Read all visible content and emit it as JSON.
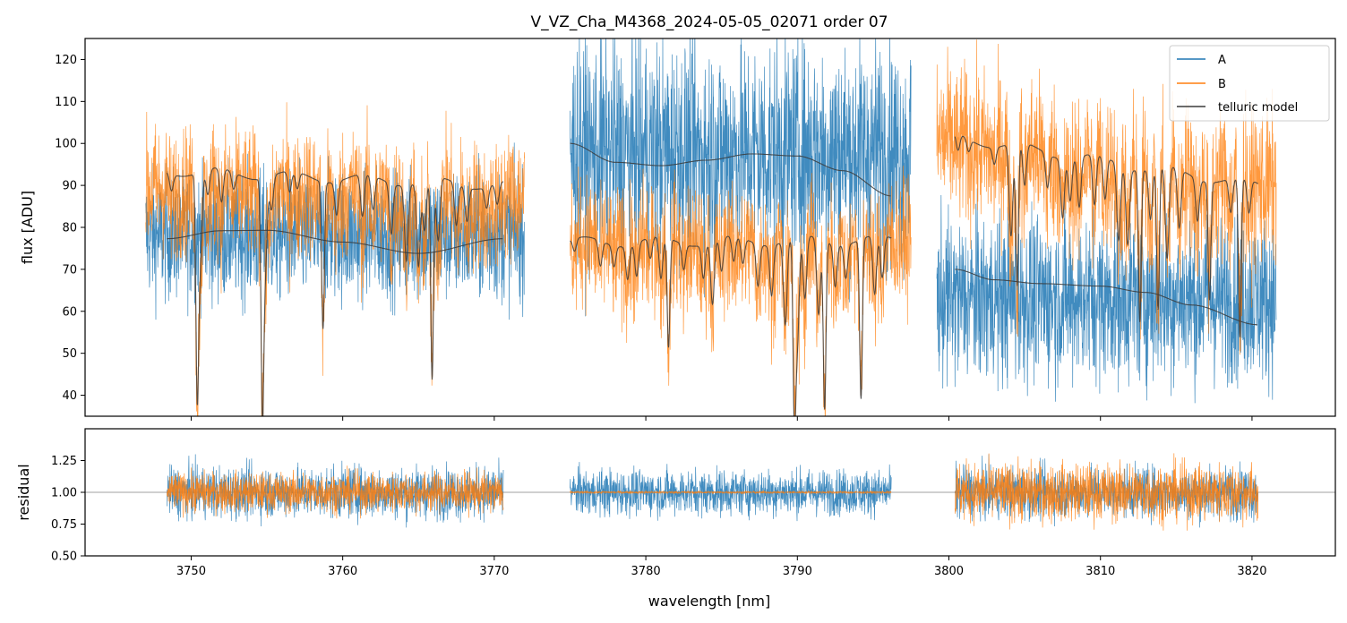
{
  "chart_data": [
    {
      "type": "line",
      "panel": "top",
      "title": "V_VZ_Cha_M4368_2024-05-05_02071  order 07",
      "xlabel": "",
      "ylabel": "flux [ADU]",
      "xlim": [
        3743.0,
        3825.5
      ],
      "ylim": [
        35,
        125
      ],
      "yticks": [
        40,
        50,
        60,
        70,
        80,
        90,
        100,
        110,
        120
      ],
      "xticks": [
        3750,
        3760,
        3770,
        3780,
        3790,
        3800,
        3810,
        3820
      ],
      "legend": {
        "position": "top-right",
        "entries": [
          "A",
          "B",
          "telluric model"
        ]
      },
      "colors": {
        "A": "#1f77b4",
        "B": "#ff7f0e",
        "model": "#3a3a3a",
        "axes": "#000000"
      },
      "segments": [
        {
          "x_start": 3747.0,
          "x_end": 3772.0,
          "A_mean": 78,
          "A_noise": 14,
          "B_mean": 88,
          "B_noise": 14,
          "modelA": {
            "x": [
              3748.4,
              3752,
              3755,
              3760,
              3765,
              3770.6
            ],
            "y": [
              77.3,
              79.2,
              79.3,
              76.5,
              73.8,
              77.3
            ]
          },
          "modelB": {
            "x": [
              3748.4,
              3770.6
            ],
            "base_y": [
              93.5,
              90.0
            ],
            "dips": [
              [
                3748.7,
                4
              ],
              [
                3750.4,
                50
              ],
              [
                3750.6,
                20
              ],
              [
                3751.1,
                6
              ],
              [
                3752.0,
                8
              ],
              [
                3752.8,
                4
              ],
              [
                3754.7,
                53
              ],
              [
                3754.9,
                20
              ],
              [
                3755.3,
                8
              ],
              [
                3756.5,
                5
              ],
              [
                3757.0,
                4
              ],
              [
                3758.7,
                35
              ],
              [
                3759.6,
                8
              ],
              [
                3761.3,
                10
              ],
              [
                3762.0,
                8
              ],
              [
                3763.2,
                12
              ],
              [
                3764.2,
                18
              ],
              [
                3765.0,
                20
              ],
              [
                3765.4,
                12
              ],
              [
                3765.9,
                48
              ],
              [
                3766.3,
                15
              ],
              [
                3767.5,
                10
              ],
              [
                3768.2,
                8
              ],
              [
                3769.5,
                5
              ],
              [
                3770.2,
                5
              ]
            ]
          }
        },
        {
          "x_start": 3775.0,
          "x_end": 3797.5,
          "A_mean": 98,
          "A_noise": 24,
          "B_mean": 76,
          "B_noise": 14,
          "modelA": {
            "x": [
              3775.0,
              3778,
              3781,
              3784,
              3787,
              3790,
              3793,
              3796.2
            ],
            "y": [
              100.0,
              95.5,
              94.7,
              96.0,
              97.5,
              97.0,
              93.5,
              87.5
            ]
          },
          "modelB": {
            "x": [
              3775.0,
              3796.2
            ],
            "base_y": [
              76.5,
              77.0
            ],
            "dips": [
              [
                3775.3,
                3
              ],
              [
                3777.0,
                6
              ],
              [
                3777.9,
                5
              ],
              [
                3778.8,
                8
              ],
              [
                3779.4,
                8
              ],
              [
                3780.3,
                5
              ],
              [
                3781.0,
                10
              ],
              [
                3781.5,
                26
              ],
              [
                3782.5,
                6
              ],
              [
                3783.8,
                8
              ],
              [
                3784.4,
                15
              ],
              [
                3785.0,
                8
              ],
              [
                3785.8,
                6
              ],
              [
                3786.4,
                6
              ],
              [
                3787.4,
                10
              ],
              [
                3788.3,
                12
              ],
              [
                3789.2,
                20
              ],
              [
                3789.8,
                40
              ],
              [
                3790.0,
                25
              ],
              [
                3790.5,
                15
              ],
              [
                3791.4,
                18
              ],
              [
                3791.8,
                40
              ],
              [
                3792.5,
                10
              ],
              [
                3793.2,
                8
              ],
              [
                3794.2,
                38
              ],
              [
                3795.1,
                14
              ],
              [
                3795.6,
                10
              ]
            ]
          }
        },
        {
          "x_start": 3799.2,
          "x_end": 3821.6,
          "A_mean": 63,
          "A_noise": 18,
          "B_mean": 95,
          "B_noise": 17,
          "modelA": {
            "x": [
              3800.4,
              3803,
              3806,
              3810,
              3813,
              3816,
              3820.4
            ],
            "y": [
              70.0,
              67.5,
              66.6,
              66.0,
              64.5,
              61.5,
              56.8
            ]
          },
          "modelB": {
            "x": [
              3800.4,
              3820.4
            ],
            "base_y": [
              101.5,
              90.0
            ],
            "dips": [
              [
                3800.6,
                4
              ],
              [
                3801.3,
                3
              ],
              [
                3803.0,
                4
              ],
              [
                3804.1,
                22
              ],
              [
                3804.5,
                34
              ],
              [
                3805.0,
                10
              ],
              [
                3806.5,
                8
              ],
              [
                3807.5,
                14
              ],
              [
                3808.0,
                10
              ],
              [
                3808.6,
                12
              ],
              [
                3809.6,
                12
              ],
              [
                3810.3,
                10
              ],
              [
                3811.2,
                18
              ],
              [
                3811.8,
                18
              ],
              [
                3812.6,
                36
              ],
              [
                3813.3,
                12
              ],
              [
                3813.8,
                34
              ],
              [
                3814.4,
                22
              ],
              [
                3815.2,
                14
              ],
              [
                3816.4,
                10
              ],
              [
                3817.2,
                28
              ],
              [
                3818.6,
                8
              ],
              [
                3819.2,
                38
              ],
              [
                3819.8,
                8
              ]
            ]
          }
        }
      ]
    },
    {
      "type": "line",
      "panel": "bottom",
      "xlabel": "wavelength [nm]",
      "ylabel": "residual",
      "xlim": [
        3743.0,
        3825.5
      ],
      "ylim": [
        0.5,
        1.5
      ],
      "yticks": [
        0.5,
        0.75,
        1.0,
        1.25
      ],
      "ytick_labels": [
        "0.50",
        "0.75",
        "1.00",
        "1.25"
      ],
      "xticks": [
        3750,
        3760,
        3770,
        3780,
        3790,
        3800,
        3810,
        3820
      ],
      "reference_line": 1.0,
      "segments": [
        {
          "x_start": 3748.4,
          "x_end": 3770.6,
          "A_noise": 0.17,
          "B_noise": 0.13
        },
        {
          "x_start": 3775.0,
          "x_end": 3796.2,
          "A_noise": 0.15,
          "B_noise": 0.008
        },
        {
          "x_start": 3800.4,
          "x_end": 3820.4,
          "A_noise": 0.17,
          "B_noise": 0.19
        }
      ]
    }
  ]
}
